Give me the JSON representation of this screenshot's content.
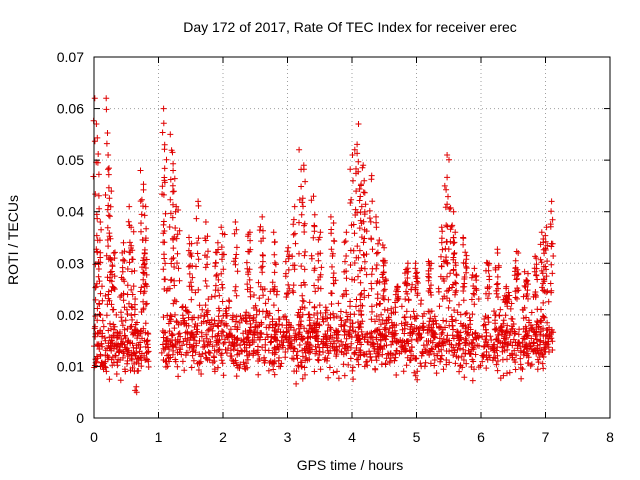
{
  "chart_data": {
    "type": "scatter",
    "title": "Day 172 of 2017, Rate Of TEC Index for receiver erec",
    "xlabel": "GPS time / hours",
    "ylabel": "ROTI / TECUs",
    "xlim": [
      0,
      8
    ],
    "ylim": [
      0,
      0.07
    ],
    "xticks": [
      "0",
      "1",
      "2",
      "3",
      "4",
      "5",
      "6",
      "7",
      "8"
    ],
    "yticks": [
      "0",
      "0.01",
      "0.02",
      "0.03",
      "0.04",
      "0.05",
      "0.06",
      "0.07"
    ],
    "grid": true,
    "marker": "+",
    "color": "#e00000",
    "series": [
      {
        "segments": [
          {
            "x_start": 0.0,
            "x_end": 0.85,
            "base_low": 0.006,
            "base_high": 0.022,
            "peaks": [
              [
                0.02,
                0.062
              ],
              [
                0.05,
                0.057
              ],
              [
                0.08,
                0.038
              ],
              [
                0.2,
                0.062
              ],
              [
                0.22,
                0.051
              ],
              [
                0.25,
                0.044
              ],
              [
                0.3,
                0.032
              ],
              [
                0.45,
                0.034
              ],
              [
                0.55,
                0.041
              ],
              [
                0.6,
                0.037
              ],
              [
                0.65,
                0.005
              ],
              [
                0.75,
                0.048
              ],
              [
                0.78,
                0.041
              ],
              [
                0.8,
                0.032
              ]
            ]
          },
          {
            "x_start": 1.05,
            "x_end": 7.12,
            "base_low": 0.006,
            "base_high": 0.024,
            "peaks": [
              [
                1.08,
                0.06
              ],
              [
                1.1,
                0.053
              ],
              [
                1.2,
                0.055
              ],
              [
                1.25,
                0.048
              ],
              [
                1.3,
                0.041
              ],
              [
                1.5,
                0.035
              ],
              [
                1.6,
                0.042
              ],
              [
                1.75,
                0.038
              ],
              [
                1.9,
                0.034
              ],
              [
                2.0,
                0.037
              ],
              [
                2.2,
                0.038
              ],
              [
                2.4,
                0.036
              ],
              [
                2.6,
                0.039
              ],
              [
                2.8,
                0.036
              ],
              [
                3.0,
                0.033
              ],
              [
                3.1,
                0.041
              ],
              [
                3.2,
                0.052
              ],
              [
                3.25,
                0.049
              ],
              [
                3.4,
                0.043
              ],
              [
                3.5,
                0.036
              ],
              [
                3.7,
                0.039
              ],
              [
                3.9,
                0.036
              ],
              [
                4.0,
                0.051
              ],
              [
                4.05,
                0.052
              ],
              [
                4.1,
                0.057
              ],
              [
                4.15,
                0.049
              ],
              [
                4.2,
                0.046
              ],
              [
                4.3,
                0.047
              ],
              [
                4.4,
                0.039
              ],
              [
                4.5,
                0.033
              ],
              [
                4.7,
                0.025
              ],
              [
                4.85,
                0.03
              ],
              [
                5.0,
                0.029
              ],
              [
                5.2,
                0.03
              ],
              [
                5.4,
                0.037
              ],
              [
                5.45,
                0.045
              ],
              [
                5.5,
                0.051
              ],
              [
                5.55,
                0.04
              ],
              [
                5.6,
                0.036
              ],
              [
                5.75,
                0.035
              ],
              [
                5.9,
                0.029
              ],
              [
                6.1,
                0.03
              ],
              [
                6.25,
                0.032
              ],
              [
                6.4,
                0.023
              ],
              [
                6.55,
                0.032
              ],
              [
                6.7,
                0.028
              ],
              [
                6.85,
                0.031
              ],
              [
                6.95,
                0.036
              ],
              [
                7.0,
                0.037
              ],
              [
                7.1,
                0.042
              ]
            ]
          }
        ]
      }
    ]
  }
}
